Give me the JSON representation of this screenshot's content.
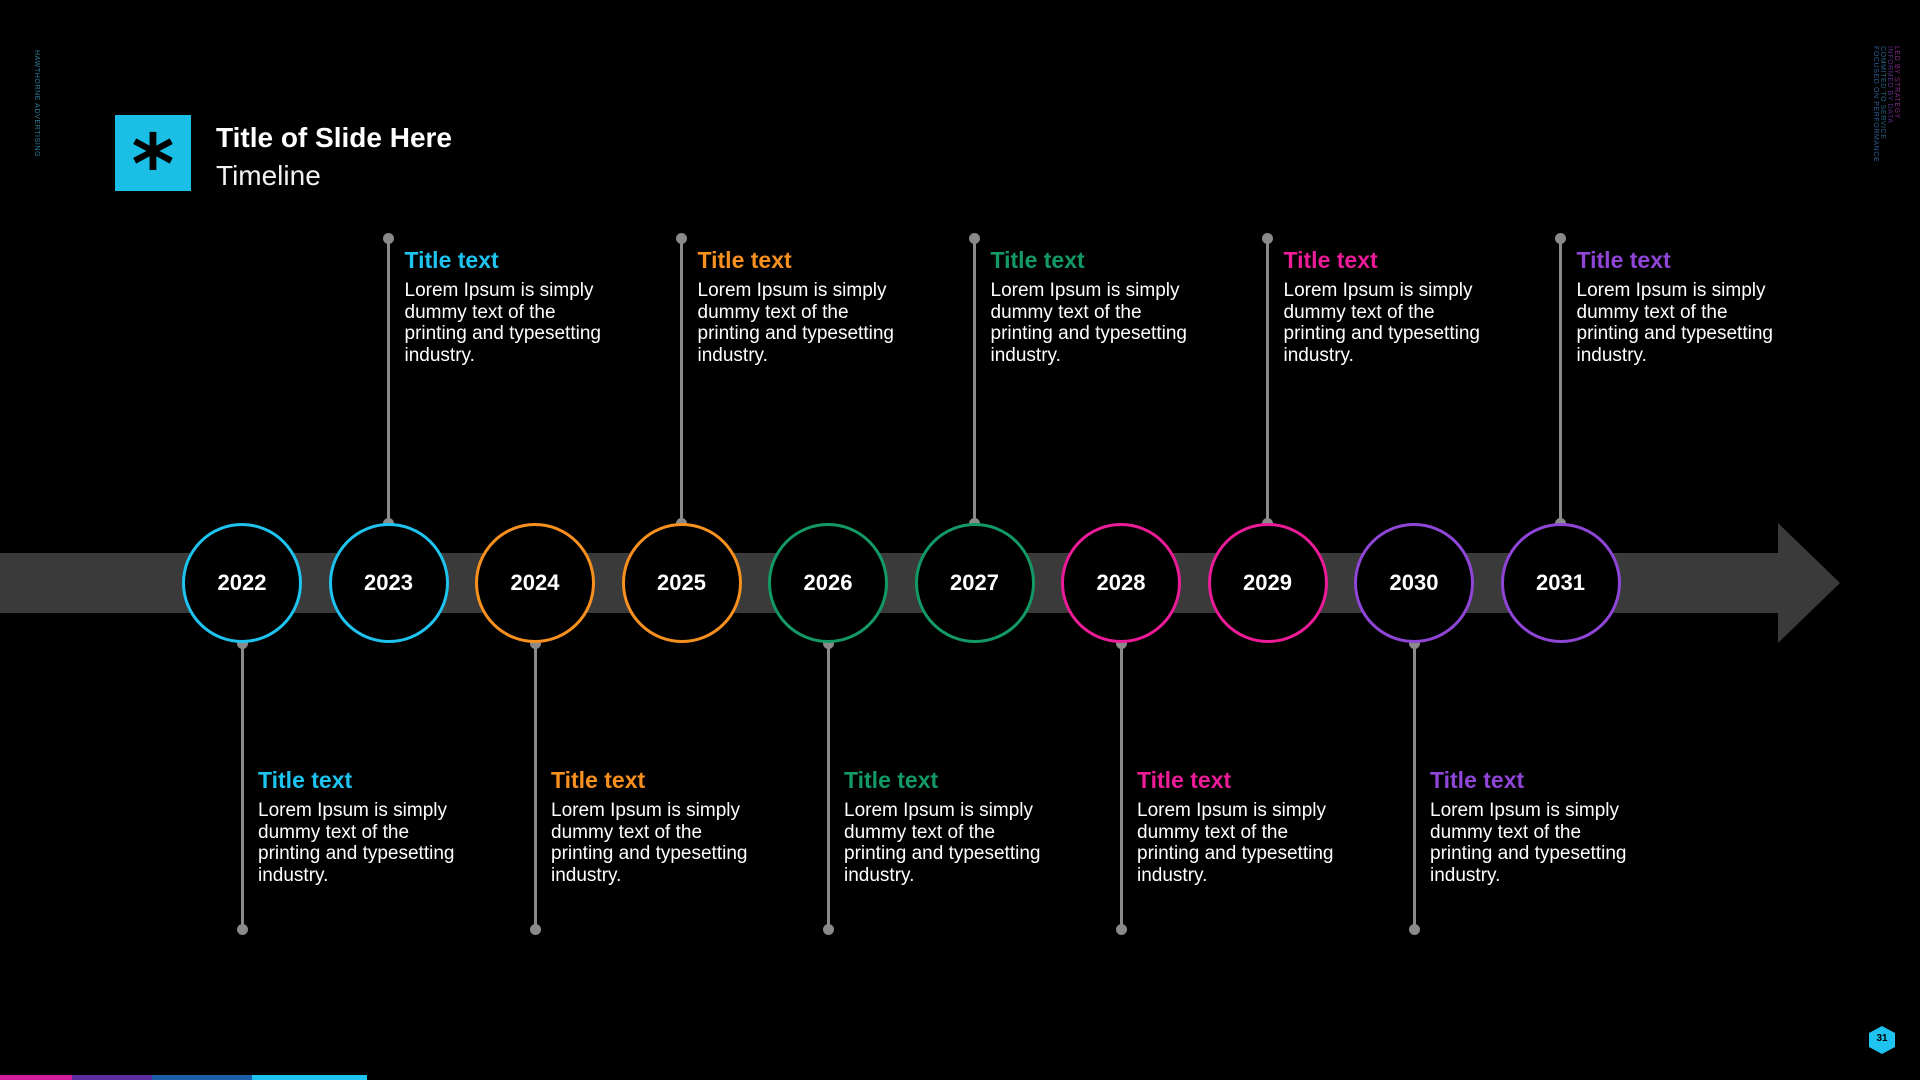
{
  "side_text": {
    "left": "HAWTHORNE ADVERTISING",
    "right": [
      {
        "text": "LED BY STRATEGY",
        "color": "#8a2a8a"
      },
      {
        "text": "INFORMED BY DATA",
        "color": "#5a2f8a"
      },
      {
        "text": "COMMITED TO SERVICE",
        "color": "#27678a"
      },
      {
        "text": "FOCUSED ON PERFORMANCE",
        "color": "#2d5f9a"
      }
    ]
  },
  "header": {
    "logo_glyph": "*",
    "title": "Title of Slide Here",
    "subtitle": "Timeline"
  },
  "timeline": [
    {
      "year": "2022",
      "color": "#1ec3ef",
      "position": "below",
      "title": "Title text",
      "desc": "Lorem Ipsum is simply dummy text of the printing and typesetting industry."
    },
    {
      "year": "2023",
      "color": "#1ec3ef",
      "position": "above",
      "title": "Title text",
      "desc": "Lorem Ipsum is simply dummy text of the printing and typesetting industry."
    },
    {
      "year": "2024",
      "color": "#f7901e",
      "position": "below",
      "title": "Title text",
      "desc": "Lorem Ipsum is simply dummy text of the printing and typesetting industry."
    },
    {
      "year": "2025",
      "color": "#f7901e",
      "position": "above",
      "title": "Title text",
      "desc": "Lorem Ipsum is simply dummy text of the printing and typesetting industry."
    },
    {
      "year": "2026",
      "color": "#139966",
      "position": "below",
      "title": "Title text",
      "desc": "Lorem Ipsum is simply dummy text of the printing and typesetting industry."
    },
    {
      "year": "2027",
      "color": "#139966",
      "position": "above",
      "title": "Title text",
      "desc": "Lorem Ipsum is simply dummy text of the printing and typesetting industry."
    },
    {
      "year": "2028",
      "color": "#ec1b97",
      "position": "below",
      "title": "Title text",
      "desc": "Lorem Ipsum is simply dummy text of the printing and typesetting industry."
    },
    {
      "year": "2029",
      "color": "#ec1b97",
      "position": "above",
      "title": "Title text",
      "desc": "Lorem Ipsum is simply dummy text of the printing and typesetting industry."
    },
    {
      "year": "2030",
      "color": "#8f45d6",
      "position": "below",
      "title": "Title text",
      "desc": "Lorem Ipsum is simply dummy text of the printing and typesetting industry."
    },
    {
      "year": "2031",
      "color": "#8f45d6",
      "position": "above",
      "title": "Title text",
      "desc": "Lorem Ipsum is simply dummy text of the printing and typesetting industry."
    }
  ],
  "footer": {
    "page_number": "31",
    "bar_colors": [
      "#d41b9c",
      "#5b2fa0",
      "#1c5fa8",
      "#1ec3ef"
    ]
  },
  "colors": {
    "background": "#000000",
    "arrow": "#3a3a3a",
    "connector": "#8a8a8a",
    "logo": "#1bbfe6"
  }
}
